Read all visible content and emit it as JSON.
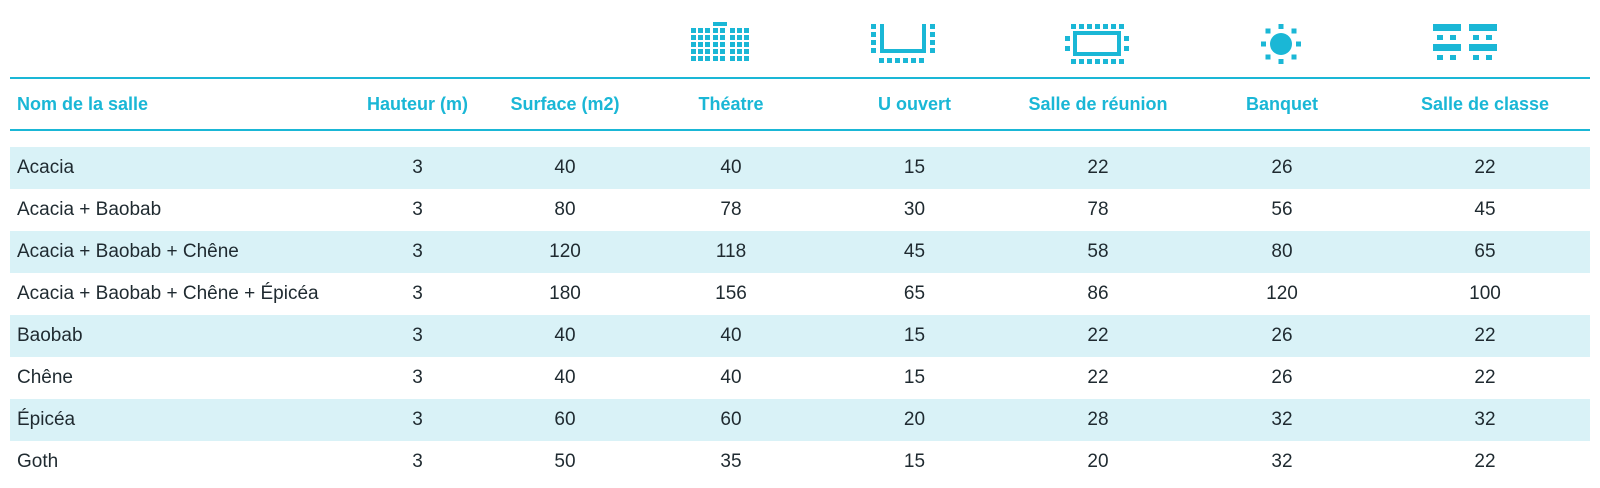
{
  "colors": {
    "accent": "#1ab7d6",
    "stripe": "#d9f2f7",
    "text": "#1f2a30"
  },
  "icons": [
    "theatre-icon",
    "u-shape-icon",
    "boardroom-icon",
    "banquet-icon",
    "classroom-icon"
  ],
  "headers": {
    "name": "Nom de la salle",
    "height": "Hauteur (m)",
    "surface": "Surface (m2)",
    "theatre": "Théatre",
    "u_open": "U ouvert",
    "meeting": "Salle de réunion",
    "banquet": "Banquet",
    "classroom": "Salle de classe"
  },
  "rows": [
    {
      "name": "Acacia",
      "height": "3",
      "surface": "40",
      "theatre": "40",
      "u_open": "15",
      "meeting": "22",
      "banquet": "26",
      "classroom": "22"
    },
    {
      "name": "Acacia + Baobab",
      "height": "3",
      "surface": "80",
      "theatre": "78",
      "u_open": "30",
      "meeting": "78",
      "banquet": "56",
      "classroom": "45"
    },
    {
      "name": "Acacia + Baobab + Chêne",
      "height": "3",
      "surface": "120",
      "theatre": "118",
      "u_open": "45",
      "meeting": "58",
      "banquet": "80",
      "classroom": "65"
    },
    {
      "name": "Acacia + Baobab + Chêne + Épicéa",
      "height": "3",
      "surface": "180",
      "theatre": "156",
      "u_open": "65",
      "meeting": "86",
      "banquet": "120",
      "classroom": "100"
    },
    {
      "name": "Baobab",
      "height": "3",
      "surface": "40",
      "theatre": "40",
      "u_open": "15",
      "meeting": "22",
      "banquet": "26",
      "classroom": "22"
    },
    {
      "name": "Chêne",
      "height": "3",
      "surface": "40",
      "theatre": "40",
      "u_open": "15",
      "meeting": "22",
      "banquet": "26",
      "classroom": "22"
    },
    {
      "name": "Épicéa",
      "height": "3",
      "surface": "60",
      "theatre": "60",
      "u_open": "20",
      "meeting": "28",
      "banquet": "32",
      "classroom": "32"
    },
    {
      "name": "Goth",
      "height": "3",
      "surface": "50",
      "theatre": "35",
      "u_open": "15",
      "meeting": "20",
      "banquet": "32",
      "classroom": "22"
    }
  ]
}
